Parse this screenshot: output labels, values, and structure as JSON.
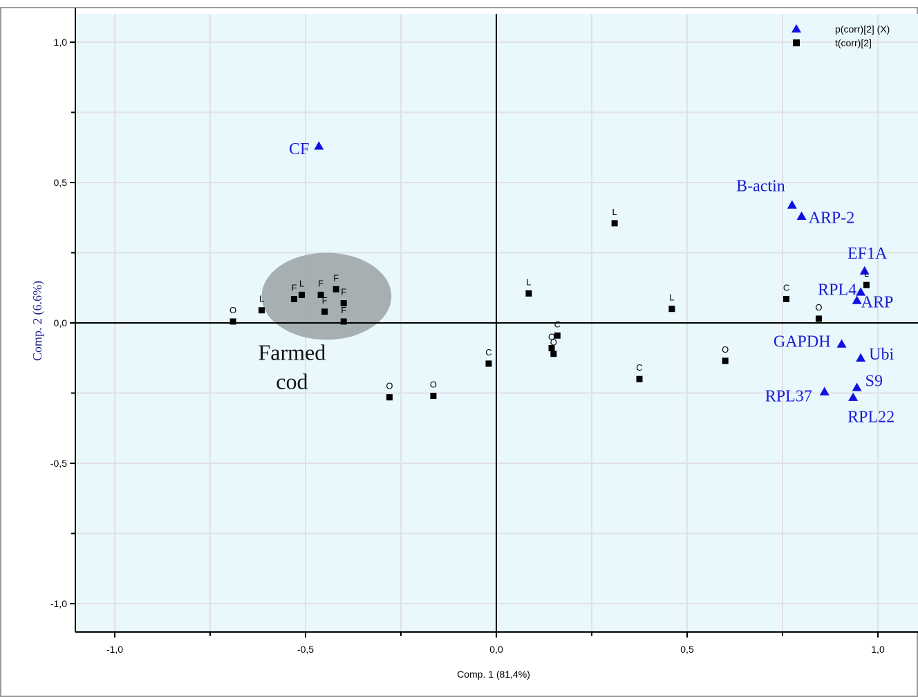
{
  "chart_data": {
    "type": "scatter",
    "xlabel": "Comp. 1 (81,4%)",
    "ylabel": "Comp. 2 (6.6%)",
    "xlim": [
      -1.1,
      1.1
    ],
    "ylim": [
      -1.1,
      1.1
    ],
    "x_ticks": [
      "-1,0",
      "-0,5",
      "0,0",
      "0,5",
      "1,0"
    ],
    "y_ticks": [
      "1,0",
      "0,5",
      "0,0",
      "-0,5",
      "-1,0"
    ],
    "grid": true,
    "legend_position": "top-right",
    "colors": {
      "loadings": "#1010e0",
      "scores": "#000000",
      "plot_background": "#e8f8fd",
      "ellipse": "#9aa3a6"
    },
    "series": [
      {
        "name": "p(corr)[2] (X)",
        "marker": "triangle",
        "points": [
          {
            "label": "CF",
            "x": -0.465,
            "y": 0.63
          },
          {
            "label": "B-actin",
            "x": 0.775,
            "y": 0.42
          },
          {
            "label": "ARP-2",
            "x": 0.8,
            "y": 0.38
          },
          {
            "label": "EF1A",
            "x": 0.965,
            "y": 0.185
          },
          {
            "label": "RPL4",
            "x": 0.955,
            "y": 0.11
          },
          {
            "label": "ARP",
            "x": 0.945,
            "y": 0.08
          },
          {
            "label": "GAPDH",
            "x": 0.905,
            "y": -0.075
          },
          {
            "label": "Ubi",
            "x": 0.955,
            "y": -0.125
          },
          {
            "label": "S9",
            "x": 0.945,
            "y": -0.23
          },
          {
            "label": "RPL37",
            "x": 0.86,
            "y": -0.245
          },
          {
            "label": "RPL22",
            "x": 0.935,
            "y": -0.265
          }
        ]
      },
      {
        "name": "t(corr)[2]",
        "marker": "square",
        "points": [
          {
            "label": "O",
            "x": -0.69,
            "y": 0.005
          },
          {
            "label": "L",
            "x": -0.615,
            "y": 0.045
          },
          {
            "label": "F",
            "x": -0.53,
            "y": 0.085
          },
          {
            "label": "L",
            "x": -0.51,
            "y": 0.1
          },
          {
            "label": "F",
            "x": -0.46,
            "y": 0.1
          },
          {
            "label": "F",
            "x": -0.45,
            "y": 0.04
          },
          {
            "label": "F",
            "x": -0.42,
            "y": 0.12
          },
          {
            "label": "F",
            "x": -0.4,
            "y": 0.07
          },
          {
            "label": "F",
            "x": -0.4,
            "y": 0.005
          },
          {
            "label": "O",
            "x": -0.28,
            "y": -0.265
          },
          {
            "label": "O",
            "x": -0.165,
            "y": -0.26
          },
          {
            "label": "C",
            "x": -0.02,
            "y": -0.145
          },
          {
            "label": "L",
            "x": 0.085,
            "y": 0.105
          },
          {
            "label": "C",
            "x": 0.16,
            "y": -0.045
          },
          {
            "label": "O",
            "x": 0.145,
            "y": -0.09
          },
          {
            "label": "O",
            "x": 0.15,
            "y": -0.11
          },
          {
            "label": "L",
            "x": 0.31,
            "y": 0.355
          },
          {
            "label": "C",
            "x": 0.375,
            "y": -0.2
          },
          {
            "label": "L",
            "x": 0.46,
            "y": 0.05
          },
          {
            "label": "O",
            "x": 0.6,
            "y": -0.135
          },
          {
            "label": "C",
            "x": 0.76,
            "y": 0.085
          },
          {
            "label": "O",
            "x": 0.845,
            "y": 0.015
          },
          {
            "label": "L",
            "x": 0.97,
            "y": 0.135
          }
        ]
      }
    ],
    "annotations": [
      {
        "text": [
          "Farmed",
          "cod"
        ],
        "ellipse": {
          "cx": -0.445,
          "cy": 0.095,
          "rx": 0.17,
          "ry": 0.155
        }
      }
    ]
  }
}
